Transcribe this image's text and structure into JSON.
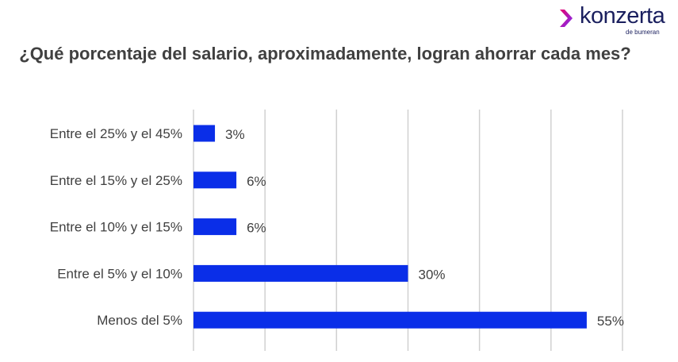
{
  "logo": {
    "word": "konzerta",
    "sub": "de bumeran",
    "colors": [
      "#e8006f",
      "#7b2ff7",
      "#1a1f5e"
    ]
  },
  "chart_data": {
    "type": "bar",
    "orientation": "horizontal",
    "title": "¿Qué porcentaje del salario, aproximadamente, logran ahorrar cada mes?",
    "categories": [
      "Entre el 25% y el 45%",
      "Entre el 15% y el 25%",
      "Entre el 10% y el 15%",
      "Entre el 5% y el 10%",
      "Menos del 5%"
    ],
    "values": [
      3,
      6,
      6,
      30,
      55
    ],
    "labels": [
      "3%",
      "6%",
      "6%",
      "30%",
      "55%"
    ],
    "xlim": [
      0,
      60
    ],
    "grid": true,
    "bar_color": "#0a2ee8"
  }
}
